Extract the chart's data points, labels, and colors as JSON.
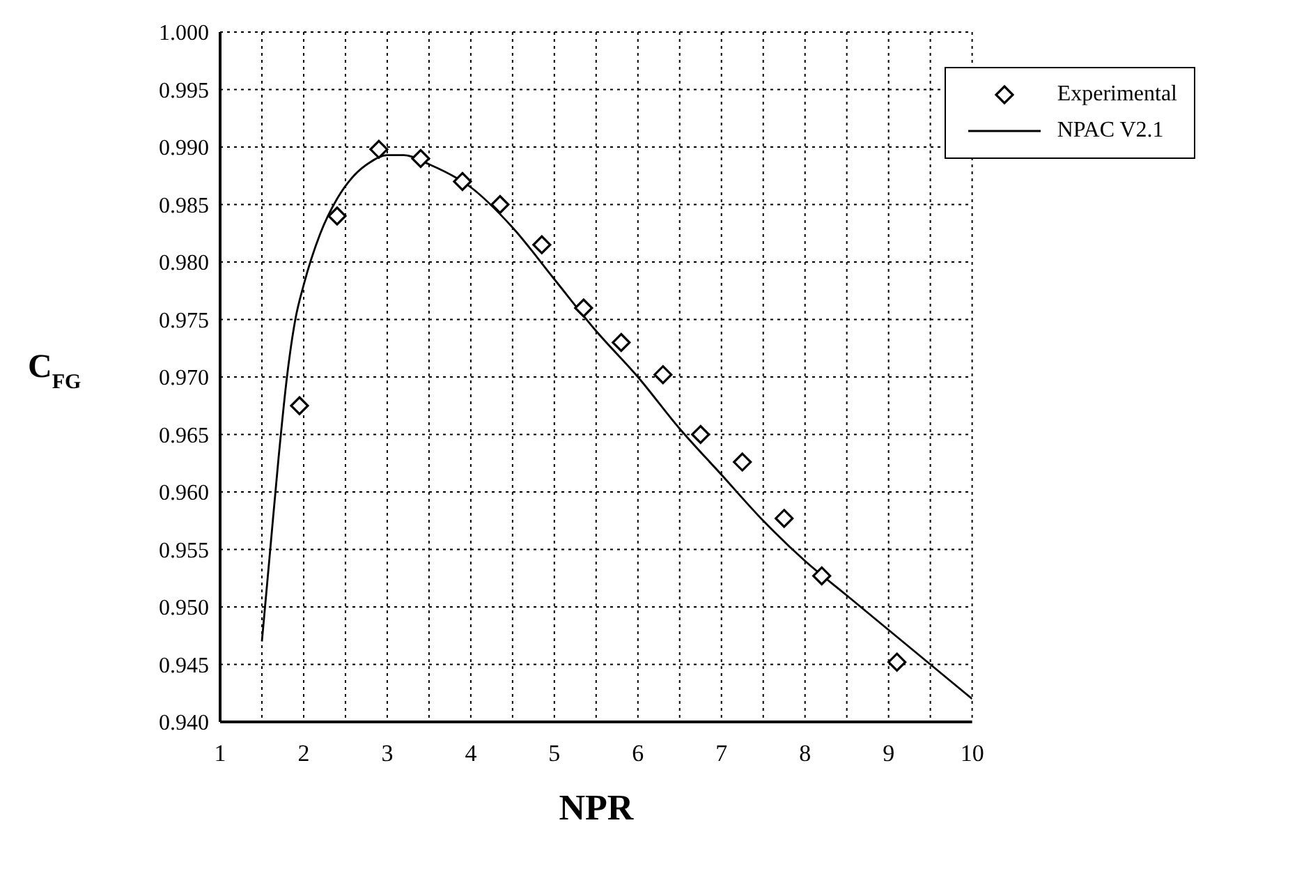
{
  "chart_data": {
    "type": "scatter",
    "xlabel": "NPR",
    "ylabel": "C$_{FG}$",
    "xlim": [
      1,
      10
    ],
    "ylim": [
      0.94,
      1.0
    ],
    "xticks": [
      1,
      {
        "value": 1.5,
        "label": null
      },
      2,
      {
        "value": 2.5,
        "label": null
      },
      3,
      {
        "value": 3.5,
        "label": null
      },
      4,
      {
        "value": 4.5,
        "label": null
      },
      5,
      {
        "value": 5.5,
        "label": null
      },
      6,
      {
        "value": 6.5,
        "label": null
      },
      7,
      {
        "value": 7.5,
        "label": null
      },
      8,
      {
        "value": 8.5,
        "label": null
      },
      9,
      {
        "value": 9.5,
        "label": null
      },
      10
    ],
    "yticks": [
      {
        "value": 0.94,
        "label": "0.940"
      },
      {
        "value": 0.945,
        "label": "0.945"
      },
      {
        "value": 0.95,
        "label": "0.950"
      },
      {
        "value": 0.955,
        "label": "0.955"
      },
      {
        "value": 0.96,
        "label": "0.960"
      },
      {
        "value": 0.965,
        "label": "0.965"
      },
      {
        "value": 0.97,
        "label": "0.970"
      },
      {
        "value": 0.975,
        "label": "0.975"
      },
      {
        "value": 0.98,
        "label": "0.980"
      },
      {
        "value": 0.985,
        "label": "0.985"
      },
      {
        "value": 0.99,
        "label": "0.990"
      },
      {
        "value": 0.995,
        "label": "0.995"
      },
      {
        "value": 1.0,
        "label": "1.000"
      }
    ],
    "grid": true,
    "legend": "top right",
    "series": [
      {
        "name": "Experimental",
        "marker": "diamond",
        "color": "#000000",
        "x": [
          1.95,
          2.4,
          2.9,
          3.4,
          3.9,
          4.35,
          4.85,
          5.35,
          5.8,
          6.3,
          6.75,
          7.25,
          7.75,
          8.2,
          9.1
        ],
        "values": [
          0.9675,
          0.984,
          0.9898,
          0.989,
          0.987,
          0.985,
          0.9815,
          0.976,
          0.973,
          0.9702,
          0.965,
          0.9626,
          0.9577,
          0.9527,
          0.9452
        ]
      },
      {
        "name": "NPAC V2.1",
        "type": "line",
        "marker": "none",
        "line_style": "solid",
        "color": "#000000",
        "x": [
          1.5,
          1.6,
          1.7,
          1.8,
          1.9,
          2.0,
          2.2,
          2.4,
          2.6,
          2.8,
          3.0,
          3.2,
          3.5,
          4.0,
          4.5,
          5.0,
          5.5,
          6.0,
          6.5,
          7.0,
          7.5,
          8.0,
          8.5,
          9.0,
          9.5,
          10
        ],
        "values": [
          0.947,
          0.955,
          0.963,
          0.97,
          0.975,
          0.978,
          0.9825,
          0.9855,
          0.9875,
          0.9887,
          0.9893,
          0.9893,
          0.9885,
          0.9865,
          0.983,
          0.9785,
          0.974,
          0.97,
          0.9655,
          0.9615,
          0.9575,
          0.954,
          0.951,
          0.948,
          0.945,
          0.942
        ]
      }
    ]
  }
}
